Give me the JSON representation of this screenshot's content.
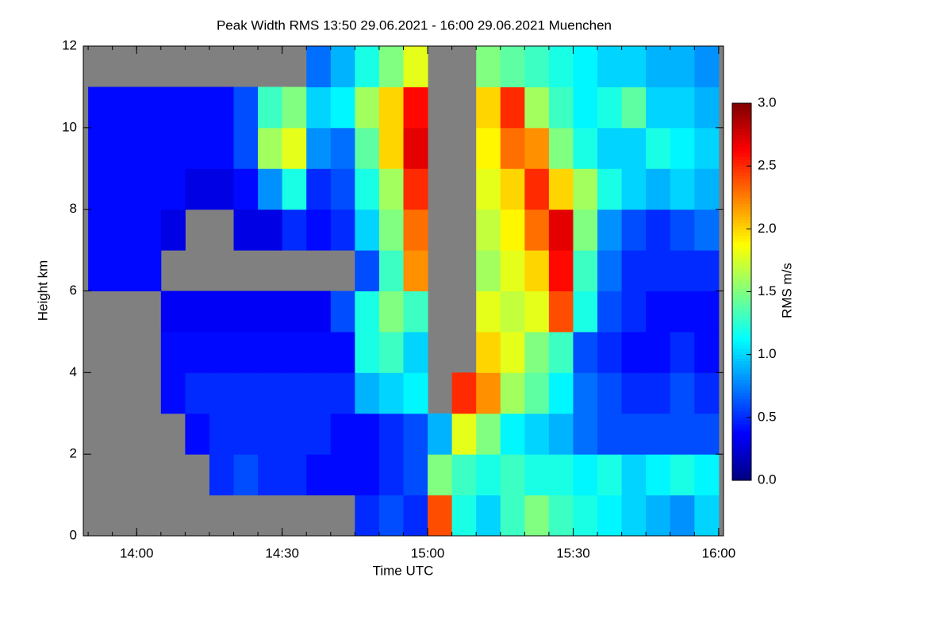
{
  "chart_data": {
    "type": "heatmap",
    "title": "Peak Width RMS   13:50 29.06.2021 - 16:00 29.06.2021 Muenchen",
    "x_label": "Time UTC",
    "y_label": "Height km",
    "colorbar_label": "RMS m/s",
    "colormap": "jet",
    "missing_color": "#808080",
    "x_edges": [
      830,
      835,
      840,
      845,
      850,
      855,
      860,
      865,
      870,
      875,
      880,
      885,
      890,
      895,
      900,
      905,
      910,
      915,
      920,
      925,
      930,
      935,
      940,
      945,
      950,
      955,
      960
    ],
    "y_edges": [
      0,
      1,
      2,
      3,
      4,
      5,
      6,
      7,
      8,
      9,
      10,
      11,
      12
    ],
    "z": [
      [
        null,
        null,
        null,
        null,
        null,
        null,
        null,
        null,
        null,
        null,
        null,
        0.5,
        0.6,
        0.5,
        2.4,
        1.2,
        1.0,
        1.3,
        1.5,
        1.3,
        1.2,
        1.1,
        1.0,
        0.9,
        0.8,
        1.0
      ],
      [
        null,
        null,
        null,
        null,
        null,
        0.5,
        0.6,
        0.5,
        0.5,
        0.4,
        0.4,
        0.4,
        0.5,
        0.6,
        1.5,
        1.3,
        1.2,
        1.3,
        1.2,
        1.2,
        1.1,
        1.2,
        1.0,
        1.1,
        1.2,
        1.1
      ],
      [
        null,
        null,
        null,
        null,
        0.4,
        0.5,
        0.5,
        0.5,
        0.5,
        0.5,
        0.4,
        0.4,
        0.5,
        0.6,
        0.9,
        1.8,
        1.5,
        1.1,
        1.0,
        0.9,
        0.7,
        0.6,
        0.6,
        0.6,
        0.6,
        0.6
      ],
      [
        null,
        null,
        null,
        0.4,
        0.5,
        0.5,
        0.5,
        0.5,
        0.5,
        0.5,
        0.5,
        0.9,
        1.0,
        1.1,
        null,
        2.5,
        2.2,
        1.6,
        1.4,
        1.1,
        0.7,
        0.6,
        0.5,
        0.5,
        0.6,
        0.5
      ],
      [
        null,
        null,
        null,
        0.4,
        0.4,
        0.4,
        0.4,
        0.4,
        0.4,
        0.4,
        0.4,
        1.2,
        1.3,
        1.0,
        null,
        null,
        2.0,
        1.8,
        1.5,
        1.3,
        0.6,
        0.5,
        0.4,
        0.4,
        0.5,
        0.4
      ],
      [
        null,
        null,
        null,
        0.35,
        0.35,
        0.35,
        0.35,
        0.35,
        0.35,
        0.35,
        0.6,
        1.2,
        1.5,
        1.3,
        null,
        null,
        1.8,
        1.7,
        1.8,
        2.4,
        1.2,
        0.6,
        0.5,
        0.4,
        0.4,
        0.4
      ],
      [
        0.4,
        0.4,
        0.4,
        null,
        null,
        null,
        null,
        null,
        null,
        null,
        null,
        0.6,
        1.3,
        2.2,
        null,
        null,
        1.6,
        1.8,
        2.0,
        2.6,
        1.3,
        0.7,
        0.5,
        0.5,
        0.5,
        0.5
      ],
      [
        0.4,
        0.4,
        0.4,
        0.3,
        null,
        null,
        0.3,
        0.3,
        0.5,
        0.4,
        0.5,
        1.0,
        1.5,
        2.3,
        null,
        null,
        1.7,
        1.9,
        2.3,
        2.7,
        1.5,
        0.8,
        0.6,
        0.5,
        0.6,
        0.7
      ],
      [
        0.4,
        0.4,
        0.4,
        0.4,
        0.3,
        0.3,
        0.4,
        0.8,
        1.2,
        0.5,
        0.6,
        1.2,
        1.6,
        2.5,
        null,
        null,
        1.8,
        2.0,
        2.5,
        2.0,
        1.6,
        1.2,
        1.0,
        0.9,
        1.0,
        0.9
      ],
      [
        0.4,
        0.4,
        0.4,
        0.4,
        0.4,
        0.4,
        0.6,
        1.6,
        1.8,
        0.8,
        0.7,
        1.4,
        2.0,
        2.7,
        null,
        null,
        1.9,
        2.3,
        2.2,
        1.5,
        1.2,
        1.0,
        1.0,
        1.2,
        1.1,
        1.0
      ],
      [
        0.4,
        0.4,
        0.4,
        0.4,
        0.4,
        0.4,
        0.6,
        1.3,
        1.5,
        1.0,
        1.1,
        1.6,
        2.0,
        2.6,
        null,
        null,
        2.0,
        2.5,
        1.6,
        1.3,
        1.1,
        1.2,
        1.4,
        1.0,
        1.0,
        0.9
      ],
      [
        null,
        null,
        null,
        null,
        null,
        null,
        null,
        null,
        null,
        0.7,
        0.9,
        1.2,
        1.5,
        1.8,
        null,
        null,
        1.5,
        1.4,
        1.3,
        1.2,
        1.1,
        1.0,
        1.0,
        0.9,
        0.9,
        0.8
      ]
    ],
    "xlim": [
      829,
      961
    ],
    "xticks": [
      {
        "value": 840,
        "label": "14:00"
      },
      {
        "value": 870,
        "label": "14:30"
      },
      {
        "value": 900,
        "label": "15:00"
      },
      {
        "value": 930,
        "label": "15:30"
      },
      {
        "value": 960,
        "label": "16:00"
      }
    ],
    "ylim": [
      0,
      12
    ],
    "yticks": [
      0,
      2,
      4,
      6,
      8,
      10,
      12
    ],
    "zlim": [
      0,
      3
    ],
    "cticks": [
      {
        "value": 0,
        "label": "0.0"
      },
      {
        "value": 0.5,
        "label": "0.5"
      },
      {
        "value": 1,
        "label": "1.0"
      },
      {
        "value": 1.5,
        "label": "1.5"
      },
      {
        "value": 2,
        "label": "2.0"
      },
      {
        "value": 2.5,
        "label": "2.5"
      },
      {
        "value": 3,
        "label": "3.0"
      }
    ]
  }
}
